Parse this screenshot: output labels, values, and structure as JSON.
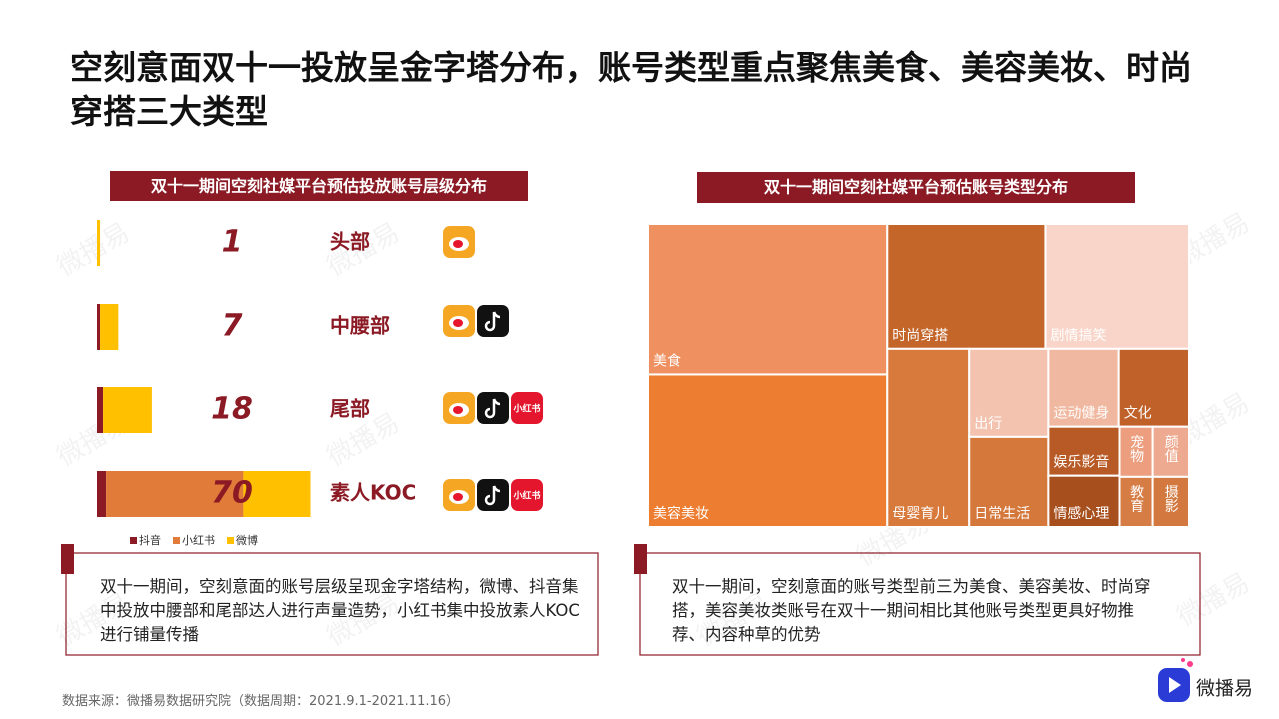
{
  "title": "空刻意面双十一投放呈金字塔分布，账号类型重点聚焦美食、美容美妆、时尚穿搭三大类型",
  "source": "数据来源：微播易数据研究院（数据周期：2021.9.1-2021.11.16）",
  "brand": "微播易",
  "left_note": "双十一期间，空刻意面的账号层级呈现金字塔结构，微博、抖音集中投放中腰部和尾部达人进行声量造势，小红书集中投放素人KOC进行铺量传播",
  "right_note": "双十一期间，空刻意面的账号类型前三为美食、美容美妆、时尚穿搭，美容美妆类账号在双十一期间相比其他账号类型更具好物推荐、内容种草的优势",
  "chart_data": [
    {
      "type": "bar",
      "title": "双十一期间空刻社媒平台预估投放账号层级分布",
      "orientation": "horizontal",
      "stacked": true,
      "categories": [
        "头部",
        "中腰部",
        "尾部",
        "素人KOC"
      ],
      "totals": [
        1,
        7,
        18,
        70
      ],
      "series": [
        {
          "name": "抖音",
          "color": "#8b1a24",
          "values": [
            0,
            1,
            2,
            3
          ]
        },
        {
          "name": "小红书",
          "color": "#e07b39",
          "values": [
            0,
            0,
            0,
            45
          ]
        },
        {
          "name": "微博",
          "color": "#ffc000",
          "values": [
            1,
            6,
            16,
            22
          ]
        }
      ],
      "legend": "bottom-left"
    },
    {
      "type": "treemap",
      "title": "双十一期间空刻社媒平台预估账号类型分布",
      "tree": {
        "children": [
          {
            "children": [
              {
                "name": "美食",
                "value": 21.7,
                "color": "#ee9060"
              },
              {
                "name": "美容美妆",
                "value": 22.0,
                "color": "#ed7d31"
              }
            ]
          },
          {
            "children": [
              {
                "children": [
                  {
                    "name": "时尚穿搭",
                    "value": 11.9,
                    "color": "#c4652a"
                  },
                  {
                    "name": "剧情搞笑",
                    "value": 10.8,
                    "color": "#f8d5c8"
                  }
                ]
              },
              {
                "children": [
                  {
                    "name": "母婴育儿",
                    "value": 8.8,
                    "color": "#d87a3c"
                  },
                  {
                    "children": [
                      {
                        "name": "出行",
                        "value": 4.2,
                        "color": "#f3c3b0"
                      },
                      {
                        "name": "日常生活",
                        "value": 4.3,
                        "color": "#d5783c"
                      }
                    ]
                  },
                  {
                    "children": [
                      {
                        "children": [
                          {
                            "name": "运动健身",
                            "value": 3.3,
                            "color": "#f0b8a0"
                          },
                          {
                            "name": "文化",
                            "value": 3.3,
                            "color": "#c0612a"
                          }
                        ]
                      },
                      {
                        "children": [
                          {
                            "children": [
                              {
                                "name": "娱乐影音",
                                "value": 2.1,
                                "color": "#b85a25"
                              },
                              {
                                "name": "情感心理",
                                "value": 2.2,
                                "color": "#a84f1e"
                              }
                            ]
                          },
                          {
                            "children": [
                              {
                                "name": "宠物",
                                "value": 1.0,
                                "color": "#ec9e7e"
                              },
                              {
                                "name": "教育",
                                "value": 1.0,
                                "color": "#d67c45"
                              }
                            ]
                          },
                          {
                            "children": [
                              {
                                "name": "颜值",
                                "value": 1.1,
                                "color": "#eeaa90"
                              },
                              {
                                "name": "摄影",
                                "value": 1.1,
                                "color": "#d3783f"
                              }
                            ]
                          }
                        ]
                      }
                    ]
                  }
                ]
              }
            ]
          }
        ]
      }
    }
  ]
}
